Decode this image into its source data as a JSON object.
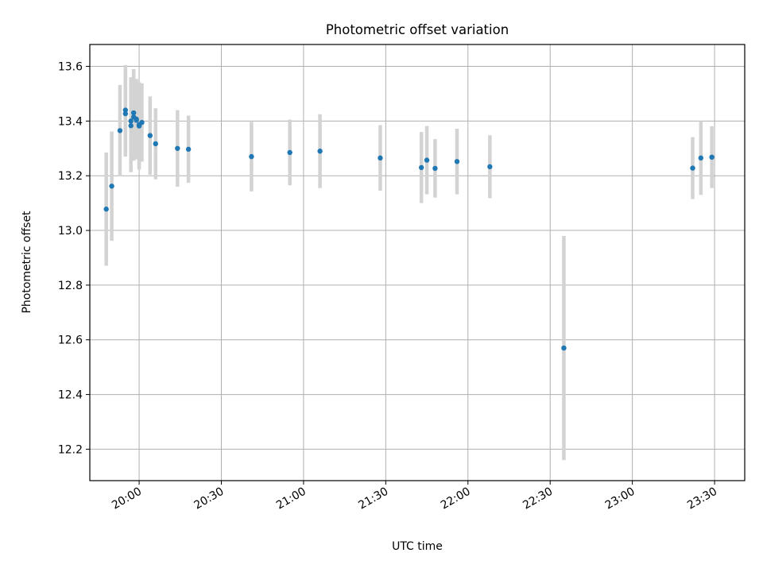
{
  "chart_data": {
    "type": "scatter",
    "title": "Photometric offset variation",
    "xlabel": "UTC time",
    "ylabel": "Photometric offset",
    "grid": true,
    "xlim": [
      "19:42",
      "23:41"
    ],
    "ylim": [
      12.085,
      13.68
    ],
    "x_ticks": [
      "20:00",
      "20:30",
      "21:00",
      "21:30",
      "22:00",
      "22:30",
      "23:00",
      "23:30"
    ],
    "y_ticks": [
      "12.2",
      "12.4",
      "12.6",
      "12.8",
      "13.0",
      "13.2",
      "13.4",
      "13.6"
    ],
    "colors": {
      "point": "#1f77b4",
      "errorbar": "#d3d3d3",
      "grid": "#b0b0b0"
    },
    "points": [
      {
        "x": "19:48",
        "y": 13.078,
        "err": 0.207
      },
      {
        "x": "19:50",
        "y": 13.162,
        "err": 0.2
      },
      {
        "x": "19:53",
        "y": 13.365,
        "err": 0.167
      },
      {
        "x": "19:55",
        "y": 13.44,
        "err": 0.165
      },
      {
        "x": "19:55",
        "y": 13.427,
        "err": 0.157
      },
      {
        "x": "19:57",
        "y": 13.383,
        "err": 0.17
      },
      {
        "x": "19:57",
        "y": 13.4,
        "err": 0.16
      },
      {
        "x": "19:58",
        "y": 13.43,
        "err": 0.16
      },
      {
        "x": "19:58",
        "y": 13.415,
        "err": 0.16
      },
      {
        "x": "19:59",
        "y": 13.407,
        "err": 0.147
      },
      {
        "x": "19:59",
        "y": 13.403,
        "err": 0.14
      },
      {
        "x": "20:00",
        "y": 13.382,
        "err": 0.16
      },
      {
        "x": "20:00",
        "y": 13.387,
        "err": 0.155
      },
      {
        "x": "20:01",
        "y": 13.395,
        "err": 0.143
      },
      {
        "x": "20:04",
        "y": 13.347,
        "err": 0.143
      },
      {
        "x": "20:06",
        "y": 13.317,
        "err": 0.13
      },
      {
        "x": "20:14",
        "y": 13.3,
        "err": 0.14
      },
      {
        "x": "20:18",
        "y": 13.297,
        "err": 0.123
      },
      {
        "x": "20:41",
        "y": 13.27,
        "err": 0.127
      },
      {
        "x": "20:55",
        "y": 13.285,
        "err": 0.12
      },
      {
        "x": "21:06",
        "y": 13.29,
        "err": 0.135
      },
      {
        "x": "21:28",
        "y": 13.265,
        "err": 0.12
      },
      {
        "x": "21:43",
        "y": 13.23,
        "err": 0.13
      },
      {
        "x": "21:45",
        "y": 13.257,
        "err": 0.125
      },
      {
        "x": "21:48",
        "y": 13.227,
        "err": 0.107
      },
      {
        "x": "21:56",
        "y": 13.252,
        "err": 0.12
      },
      {
        "x": "22:08",
        "y": 13.233,
        "err": 0.115
      },
      {
        "x": "22:35",
        "y": 12.57,
        "err": 0.41
      },
      {
        "x": "23:22",
        "y": 13.228,
        "err": 0.113
      },
      {
        "x": "23:25",
        "y": 13.265,
        "err": 0.135
      },
      {
        "x": "23:29",
        "y": 13.268,
        "err": 0.113
      }
    ]
  }
}
